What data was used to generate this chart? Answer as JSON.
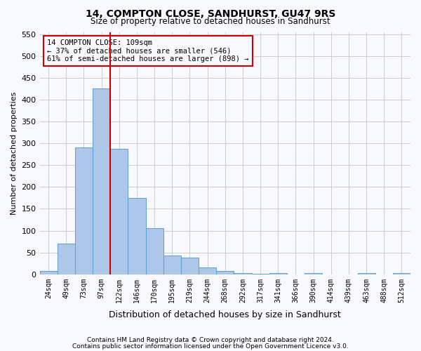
{
  "title": "14, COMPTON CLOSE, SANDHURST, GU47 9RS",
  "subtitle": "Size of property relative to detached houses in Sandhurst",
  "xlabel": "Distribution of detached houses by size in Sandhurst",
  "ylabel": "Number of detached properties",
  "bin_labels": [
    "24sqm",
    "49sqm",
    "73sqm",
    "97sqm",
    "122sqm",
    "146sqm",
    "170sqm",
    "195sqm",
    "219sqm",
    "244sqm",
    "268sqm",
    "292sqm",
    "317sqm",
    "341sqm",
    "366sqm",
    "390sqm",
    "414sqm",
    "439sqm",
    "463sqm",
    "488sqm",
    "512sqm"
  ],
  "bar_values": [
    7,
    70,
    290,
    425,
    288,
    175,
    105,
    43,
    38,
    15,
    8,
    3,
    1,
    3,
    0,
    3,
    0,
    0,
    3,
    0,
    3
  ],
  "bar_color": "#aec6e8",
  "bar_edge_color": "#5a9fd4",
  "grid_color": "#cccccc",
  "vline_x": 3.5,
  "vline_color": "#cc0000",
  "annotation_line1": "14 COMPTON CLOSE: 109sqm",
  "annotation_line2": "← 37% of detached houses are smaller (546)",
  "annotation_line3": "61% of semi-detached houses are larger (898) →",
  "annotation_box_color": "#cc0000",
  "ylim": [
    0,
    555
  ],
  "yticks": [
    0,
    50,
    100,
    150,
    200,
    250,
    300,
    350,
    400,
    450,
    500,
    550
  ],
  "footnote1": "Contains HM Land Registry data © Crown copyright and database right 2024.",
  "footnote2": "Contains public sector information licensed under the Open Government Licence v3.0.",
  "bg_color": "#f8f9ff"
}
